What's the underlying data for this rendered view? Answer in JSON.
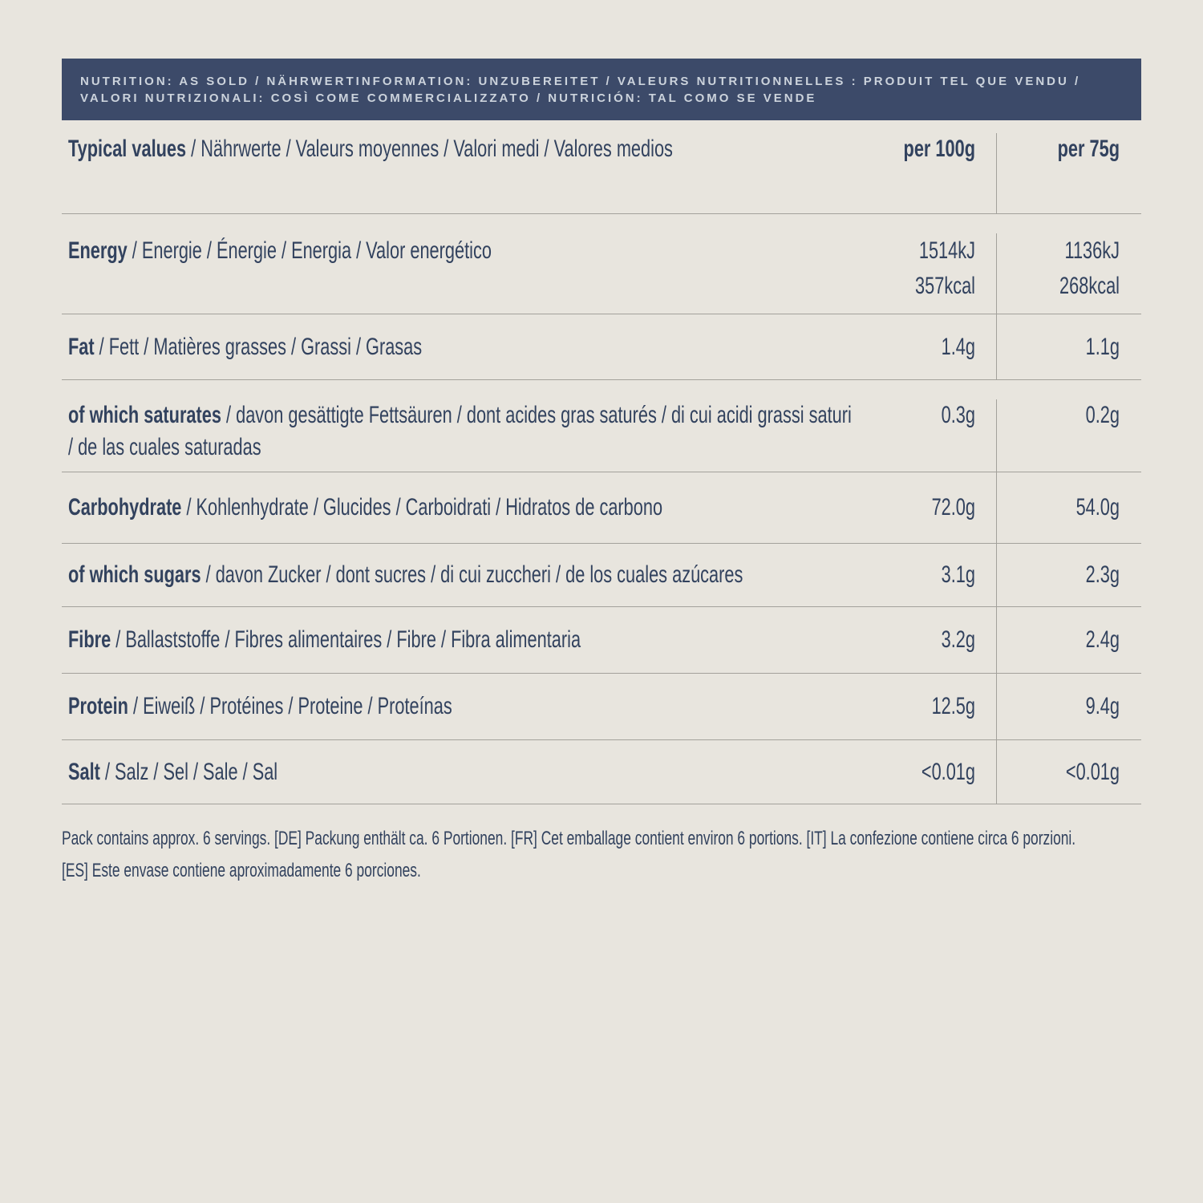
{
  "colors": {
    "page_background": "#e8e5de",
    "bar_background": "#3c4a69",
    "bar_text": "#ccd3dc",
    "body_text": "#32425e",
    "rule_line": "#a3a19b"
  },
  "header_bar": {
    "lines": [
      "NUTRITION: AS SOLD / NÄHRWERTINFORMATION: UNZUBEREITET / VALEURS NUTRITIONNELLES : PRODUIT TEL QUE VENDU /",
      "VALORI NUTRIZIONALI: COSÌ COME COMMERCIALIZZATO / NUTRICIÓN: TAL COMO SE VENDE"
    ]
  },
  "table": {
    "header": {
      "label_bold": "Typical values",
      "label_rest": " / Nährwerte / Valeurs moyennes / Valori medi / Valores medios",
      "col_per_100g": "per 100g",
      "col_per_75g": "per 75g"
    },
    "rows": [
      {
        "id": "energy",
        "label_bold": "Energy",
        "label_rest": " / Energie / Énergie / Energia / Valor energético",
        "per_100g": "1514kJ",
        "per_100g_line2": "357kcal",
        "per_75g": "1136kJ",
        "per_75g_line2": "268kcal"
      },
      {
        "id": "fat",
        "label_bold": "Fat",
        "label_rest": " / Fett / Matières grasses / Grassi / Grasas",
        "per_100g": "1.4g",
        "per_75g": "1.1g"
      },
      {
        "id": "saturates",
        "label_bold": "of which saturates",
        "label_rest": " / davon gesättigte Fettsäuren / dont acides gras saturés / di cui acidi grassi saturi / de las cuales saturadas",
        "per_100g": "0.3g",
        "per_75g": "0.2g"
      },
      {
        "id": "carbohydrate",
        "label_bold": "Carbohydrate",
        "label_rest": " / Kohlenhydrate / Glucides / Carboidrati / Hidratos de carbono",
        "per_100g": "72.0g",
        "per_75g": "54.0g"
      },
      {
        "id": "sugars",
        "label_bold": "of which sugars",
        "label_rest": " / davon Zucker / dont sucres / di cui zuccheri / de los cuales azúcares",
        "per_100g": "3.1g",
        "per_75g": "2.3g"
      },
      {
        "id": "fibre",
        "label_bold": "Fibre",
        "label_rest": " / Ballaststoffe / Fibres alimentaires / Fibre / Fibra alimentaria",
        "per_100g": "3.2g",
        "per_75g": "2.4g"
      },
      {
        "id": "protein",
        "label_bold": "Protein",
        "label_rest": " / Eiweiß / Protéines / Proteine / Proteínas",
        "per_100g": "12.5g",
        "per_75g": "9.4g"
      },
      {
        "id": "salt",
        "label_bold": "Salt",
        "label_rest": " / Salz / Sel / Sale / Sal",
        "per_100g": "<0.01g",
        "per_75g": "<0.01g"
      }
    ]
  },
  "footer": {
    "lines": [
      "Pack contains approx. 6 servings. [DE] Packung enthält ca. 6 Portionen. [FR] Cet emballage contient environ 6 portions. [IT] La confezione contiene circa 6 porzioni.",
      "[ES] Este envase contiene aproximadamente 6 porciones."
    ]
  }
}
